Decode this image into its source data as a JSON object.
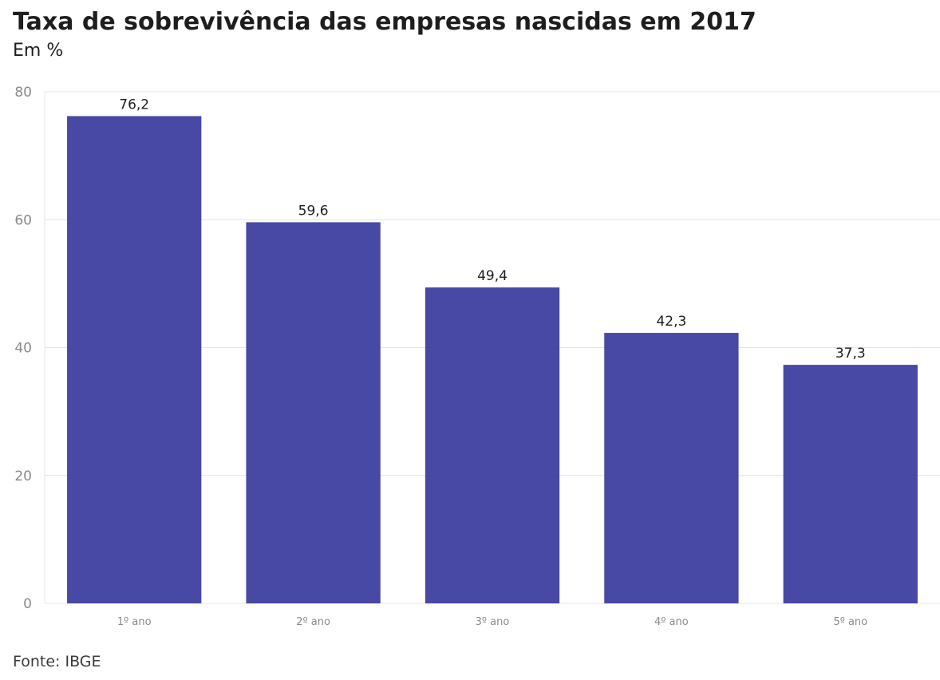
{
  "colors": {
    "bar": "#3a3a9e",
    "grid": "#e4e4e4",
    "tick_text": "#8a8a8a",
    "label_text": "#1e1e1e"
  },
  "chart_data": {
    "type": "bar",
    "title": "Taxa de sobrevivência das empresas nascidas em 2017",
    "subtitle": "Em %",
    "categories": [
      "1º ano",
      "2º ano",
      "3º ano",
      "4º ano",
      "5º ano"
    ],
    "values": [
      76.2,
      59.6,
      49.4,
      42.3,
      37.3
    ],
    "data_labels": [
      "76,2",
      "59,6",
      "49,4",
      "42,3",
      "37,3"
    ],
    "y_ticks": [
      0,
      20,
      40,
      60,
      80
    ],
    "ylim": [
      0,
      80
    ],
    "xlabel": "",
    "ylabel": "",
    "grid": true,
    "source": "Fonte: IBGE"
  }
}
